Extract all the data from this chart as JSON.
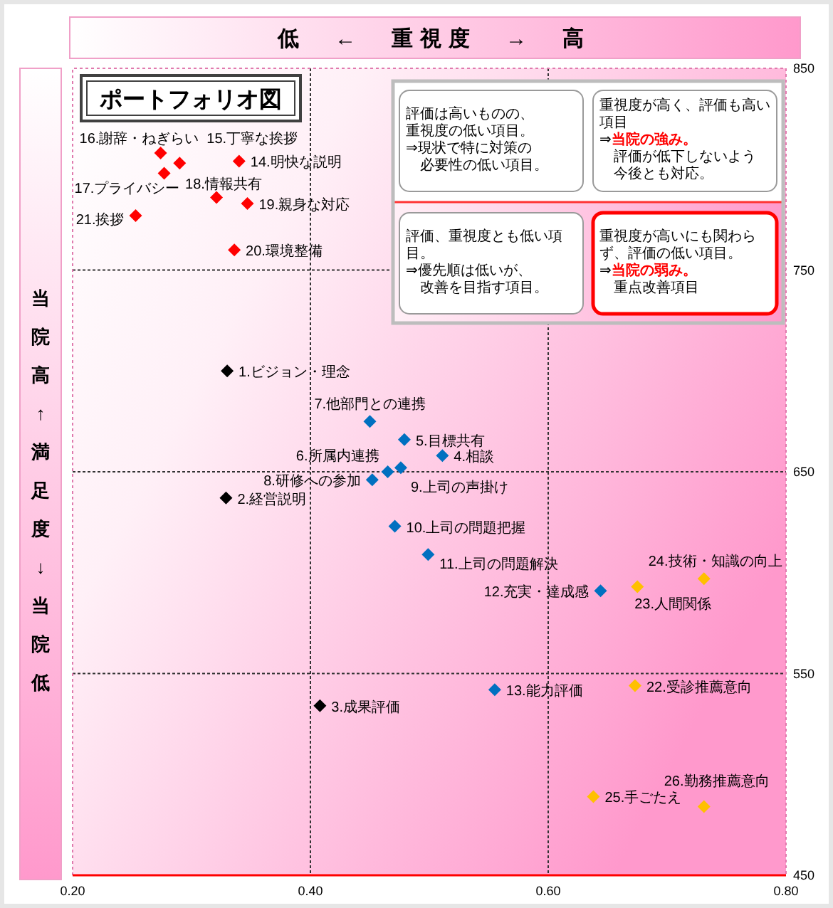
{
  "chart_data": {
    "type": "scatter",
    "title": "ポートフォリオ図",
    "xlabel": "低　←　重視度　→　高",
    "ylabel": "当院高↑満足度↓当院低",
    "xlim": [
      0.2,
      0.8
    ],
    "xticks": [
      {
        "value": 0.2,
        "label": "0.20"
      },
      {
        "value": 0.4,
        "label": "0.40"
      },
      {
        "value": 0.6,
        "label": "0.60"
      },
      {
        "value": 0.8,
        "label": "0.80"
      }
    ],
    "ylim": [
      450,
      850
    ],
    "yticks": [
      450,
      550,
      650,
      750,
      850
    ],
    "grid": true,
    "marker": "diamond",
    "series": [
      {
        "color": "#000000",
        "x": [
          0.33,
          0.329,
          0.408
        ],
        "values": [
          700,
          637,
          534
        ]
      },
      {
        "color": "#0070c0",
        "x": [
          0.511,
          0.479,
          0.465,
          0.45,
          0.452,
          0.476,
          0.471,
          0.499,
          0.644,
          0.555
        ],
        "values": [
          658,
          666,
          650,
          675,
          646,
          652,
          623,
          609,
          591,
          542
        ]
      },
      {
        "color": "#ff0000",
        "x": [
          0.34,
          0.29,
          0.274,
          0.277,
          0.321,
          0.347,
          0.336,
          0.253
        ],
        "values": [
          804,
          803,
          808,
          798,
          786,
          783,
          760,
          777
        ]
      },
      {
        "color": "#ffc000",
        "x": [
          0.673,
          0.675,
          0.731,
          0.638,
          0.731
        ],
        "values": [
          544,
          593,
          597,
          489,
          484
        ]
      }
    ],
    "annotations": [
      {
        "text": "1.ビジョン・理念",
        "x": 0.33,
        "y": 700
      },
      {
        "text": "2.経営説明",
        "x": 0.329,
        "y": 637
      },
      {
        "text": "3.成果評価",
        "x": 0.408,
        "y": 534
      },
      {
        "text": "4.相談",
        "x": 0.511,
        "y": 658
      },
      {
        "text": "5.目標共有",
        "x": 0.479,
        "y": 666
      },
      {
        "text": "6.所属内連携",
        "x": 0.465,
        "y": 650
      },
      {
        "text": "7.他部門との連携",
        "x": 0.45,
        "y": 675
      },
      {
        "text": "8.研修への参加",
        "x": 0.452,
        "y": 646
      },
      {
        "text": "9.上司の声掛け",
        "x": 0.476,
        "y": 652
      },
      {
        "text": "10.上司の問題把握",
        "x": 0.471,
        "y": 623
      },
      {
        "text": "11.上司の問題解決",
        "x": 0.499,
        "y": 609
      },
      {
        "text": "12.充実・達成感",
        "x": 0.644,
        "y": 591
      },
      {
        "text": "13.能力評価",
        "x": 0.555,
        "y": 542
      },
      {
        "text": "14.明快な説明",
        "x": 0.34,
        "y": 804
      },
      {
        "text": "15.丁寧な挨拶",
        "x": 0.29,
        "y": 803
      },
      {
        "text": "16.謝辞・ねぎらい",
        "x": 0.274,
        "y": 808
      },
      {
        "text": "17.プライバシー",
        "x": 0.277,
        "y": 798
      },
      {
        "text": "18.情報共有",
        "x": 0.321,
        "y": 786
      },
      {
        "text": "19.親身な対応",
        "x": 0.347,
        "y": 783
      },
      {
        "text": "20.環境整備",
        "x": 0.336,
        "y": 760
      },
      {
        "text": "21.挨拶",
        "x": 0.253,
        "y": 777
      },
      {
        "text": "22.受診推薦意向",
        "x": 0.673,
        "y": 544
      },
      {
        "text": "23.人間関係",
        "x": 0.675,
        "y": 593
      },
      {
        "text": "24.技術・知識の向上",
        "x": 0.731,
        "y": 597
      },
      {
        "text": "25.手ごたえ",
        "x": 0.638,
        "y": 489
      },
      {
        "text": "26.勤務推薦意向",
        "x": 0.731,
        "y": 484
      },
      "評価は高いものの、重視度の低い項目。",
      "⇒現状で特に対策の",
      "必要性の低い項目。",
      "重視度が高く、評価も高い項目",
      "⇒**当院の強み。**",
      "評価が低下しないよう今後とも対応。",
      "評価、重視度とも低い項目。",
      "⇒優先順は低いが、",
      "改善を目指す項目。",
      "重視度が高いにも関わらず、評価の低い項目。",
      "⇒**当院の弱み。**",
      "重点改善項目"
    ]
  }
}
